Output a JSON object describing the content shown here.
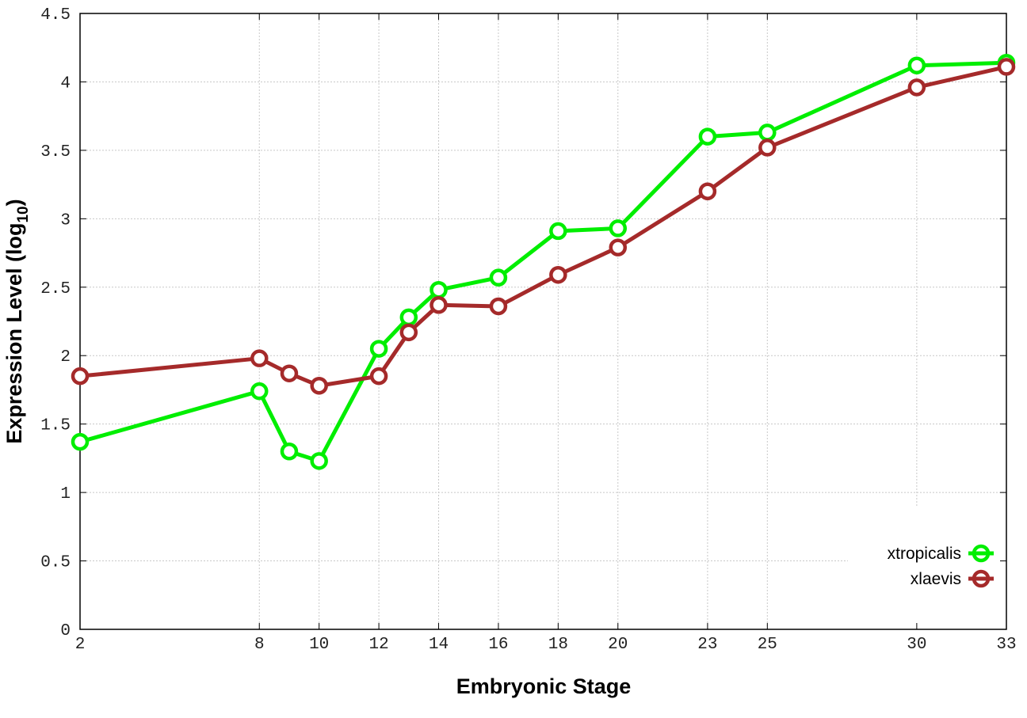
{
  "chart_data": {
    "type": "line",
    "title": "",
    "xlabel": "Embryonic Stage",
    "ylabel": "Expression Level (log",
    "ylabel_subscript": "10",
    "ylabel_close": ")",
    "xlim": [
      2,
      33
    ],
    "ylim": [
      0,
      4.5
    ],
    "x_ticks": [
      2,
      8,
      10,
      12,
      14,
      16,
      18,
      20,
      23,
      25,
      30,
      33
    ],
    "y_ticks": [
      0,
      0.5,
      1,
      1.5,
      2,
      2.5,
      3,
      3.5,
      4,
      4.5
    ],
    "y_tick_labels": [
      "0",
      "0.5",
      "1",
      "1.5",
      "2",
      "2.5",
      "3",
      "3.5",
      "4",
      "4.5"
    ],
    "grid": true,
    "legend_position": "bottom-right",
    "x": [
      2,
      8,
      9,
      10,
      12,
      13,
      14,
      16,
      18,
      20,
      23,
      25,
      30,
      33
    ],
    "series": [
      {
        "name": "xtropicalis",
        "color": "#00ee00",
        "marker": "circle",
        "values": [
          1.37,
          1.74,
          1.3,
          1.23,
          2.05,
          2.28,
          2.48,
          2.57,
          2.91,
          2.93,
          3.6,
          3.63,
          4.12,
          4.14
        ]
      },
      {
        "name": "xlaevis",
        "color": "#a52a2a",
        "marker": "circle",
        "values": [
          1.85,
          1.98,
          1.87,
          1.78,
          1.85,
          2.17,
          2.37,
          2.36,
          2.59,
          2.79,
          3.2,
          3.52,
          3.96,
          4.11
        ]
      }
    ]
  }
}
